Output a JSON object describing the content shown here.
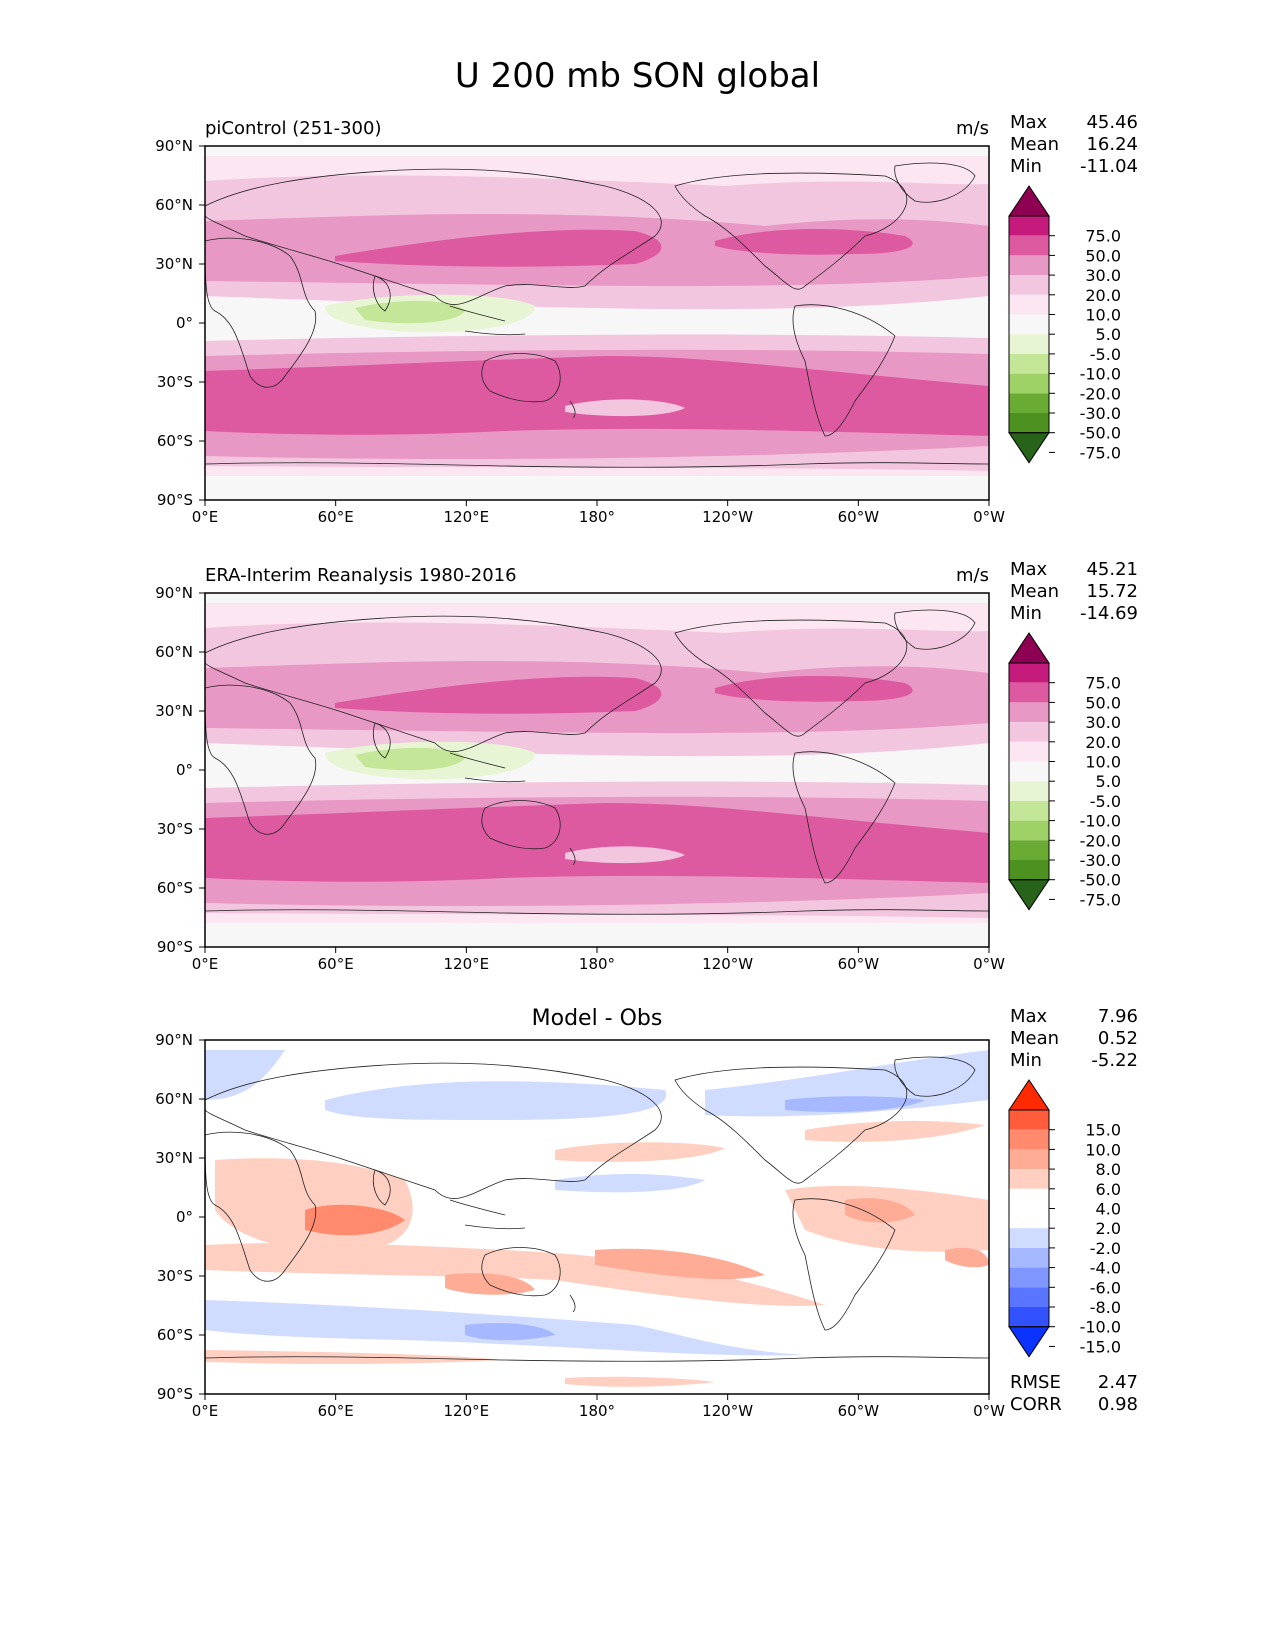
{
  "title": "U 200 mb SON global",
  "panels": [
    {
      "name": "test",
      "left_title": "piControl (251-300)",
      "center_title": "",
      "units": "m/s",
      "stats": [
        {
          "label": "Max",
          "value": "45.46"
        },
        {
          "label": "Mean",
          "value": "16.24"
        },
        {
          "label": "Min",
          "value": "-11.04"
        }
      ],
      "colorbar": {
        "labels": [
          "75.0",
          "50.0",
          "30.0",
          "20.0",
          "10.0",
          "5.0",
          "-5.0",
          "-10.0",
          "-20.0",
          "-30.0",
          "-50.0",
          "-75.0"
        ],
        "colors": [
          "#8e0152",
          "#c51b7d",
          "#de5aa0",
          "#e898c4",
          "#f3c6e0",
          "#fbe6f1",
          "#f7f7f7",
          "#e8f5d4",
          "#c4e699",
          "#9fd266",
          "#6aab34",
          "#4d9221",
          "#276419"
        ]
      },
      "extras": []
    },
    {
      "name": "reference",
      "left_title": "ERA-Interim Reanalysis 1980-2016",
      "center_title": "",
      "units": "m/s",
      "stats": [
        {
          "label": "Max",
          "value": "45.21"
        },
        {
          "label": "Mean",
          "value": "15.72"
        },
        {
          "label": "Min",
          "value": "-14.69"
        }
      ],
      "colorbar": {
        "labels": [
          "75.0",
          "50.0",
          "30.0",
          "20.0",
          "10.0",
          "5.0",
          "-5.0",
          "-10.0",
          "-20.0",
          "-30.0",
          "-50.0",
          "-75.0"
        ],
        "colors": [
          "#8e0152",
          "#c51b7d",
          "#de5aa0",
          "#e898c4",
          "#f3c6e0",
          "#fbe6f1",
          "#f7f7f7",
          "#e8f5d4",
          "#c4e699",
          "#9fd266",
          "#6aab34",
          "#4d9221",
          "#276419"
        ]
      },
      "extras": []
    },
    {
      "name": "difference",
      "left_title": "",
      "center_title": "Model - Obs",
      "units": "",
      "stats": [
        {
          "label": "Max",
          "value": "7.96"
        },
        {
          "label": "Mean",
          "value": "0.52"
        },
        {
          "label": "Min",
          "value": "-5.22"
        }
      ],
      "colorbar": {
        "labels": [
          "15.0",
          "10.0",
          "8.0",
          "6.0",
          "4.0",
          "2.0",
          "-2.0",
          "-4.0",
          "-6.0",
          "-8.0",
          "-10.0",
          "-15.0"
        ],
        "colors": [
          "#ff2a00",
          "#ff5c3c",
          "#ff8a6e",
          "#ffac96",
          "#ffd0c2",
          "#ffffff",
          "#ffffff",
          "#d0dcff",
          "#a6b8ff",
          "#8096ff",
          "#5a75ff",
          "#3352ff",
          "#0a33ff"
        ]
      },
      "extras": [
        {
          "label": "RMSE",
          "value": "2.47"
        },
        {
          "label": "CORR",
          "value": "0.98"
        }
      ]
    }
  ],
  "axes": {
    "x_ticks": [
      "0°E",
      "60°E",
      "120°E",
      "180°",
      "120°W",
      "60°W",
      "0°W"
    ],
    "y_ticks": [
      "90°N",
      "60°N",
      "30°N",
      "0°",
      "30°S",
      "60°S",
      "90°S"
    ]
  }
}
